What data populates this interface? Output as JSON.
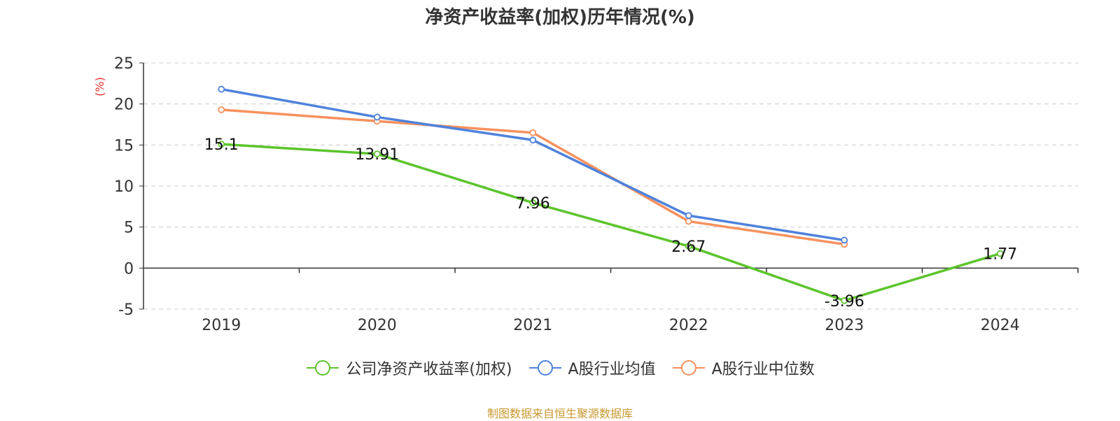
{
  "chart_data": {
    "type": "line",
    "title": "净资产收益率(加权)历年情况(%)",
    "ylabel": "(%)",
    "categories": [
      "2019",
      "2020",
      "2021",
      "2022",
      "2023",
      "2024"
    ],
    "ylim": [
      -5,
      25
    ],
    "yticks": [
      "25",
      "20",
      "15",
      "10",
      "5",
      "0",
      "-5"
    ],
    "grid": true,
    "legend_position": "bottom",
    "series": [
      {
        "name": "公司净资产收益率(加权)",
        "color": "#5cc42c",
        "values": [
          15.1,
          13.91,
          7.96,
          2.67,
          -3.96,
          1.77
        ],
        "labels": [
          "15.1",
          "13.91",
          "7.96",
          "2.67",
          "-3.96",
          "1.77"
        ]
      },
      {
        "name": "A股行业均值",
        "color": "#4f82dc",
        "values": [
          21.8,
          18.4,
          15.6,
          6.4,
          3.4,
          null
        ]
      },
      {
        "name": "A股行业中位数",
        "color": "#f7915e",
        "values": [
          19.3,
          17.9,
          16.5,
          5.7,
          2.9,
          null
        ]
      }
    ]
  },
  "footer": {
    "source": "制图数据来自恒生聚源数据库"
  }
}
